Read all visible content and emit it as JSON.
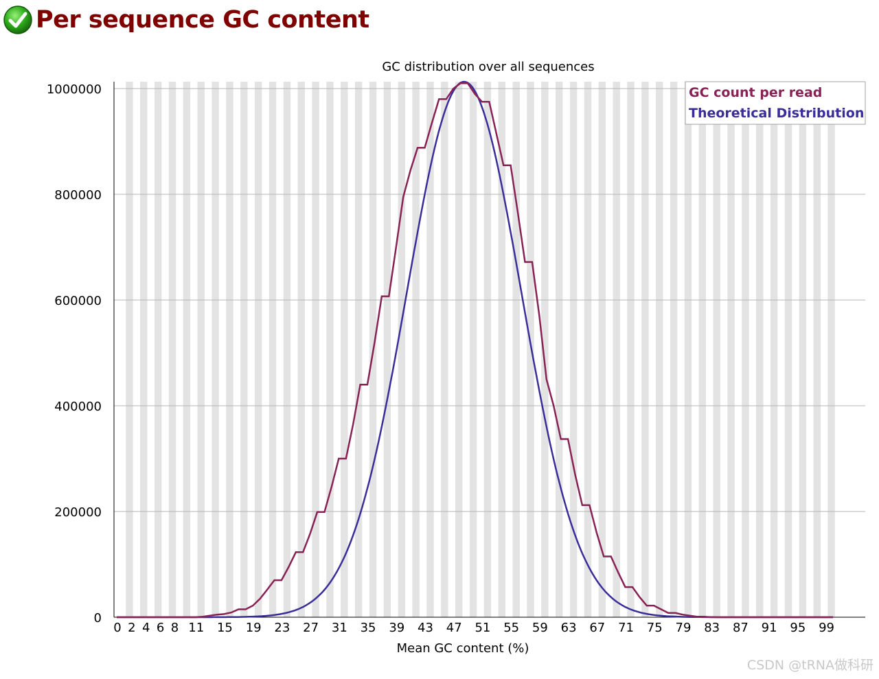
{
  "header": {
    "title": "Per sequence GC content",
    "status_icon": "pass-check-icon",
    "title_color": "#800000"
  },
  "watermark": "CSDN @tRNA做科研",
  "chart_data": {
    "type": "line",
    "title": "GC distribution over all sequences",
    "xlabel": "Mean GC content (%)",
    "ylabel": "",
    "xlim": [
      0,
      100
    ],
    "ylim": [
      0,
      1000000
    ],
    "x_tick_labels": [
      "0",
      "2",
      "4",
      "6",
      "8",
      "11",
      "15",
      "19",
      "23",
      "27",
      "31",
      "35",
      "39",
      "43",
      "47",
      "51",
      "55",
      "59",
      "63",
      "67",
      "71",
      "75",
      "79",
      "83",
      "87",
      "91",
      "95",
      "99"
    ],
    "y_tick_labels": [
      "0",
      "200000",
      "400000",
      "600000",
      "800000",
      "1000000"
    ],
    "y_ticks": [
      0,
      200000,
      400000,
      600000,
      800000,
      1000000
    ],
    "grid": true,
    "legend_position": "top-right",
    "colors": {
      "background_stripe": "#e3e3e3",
      "gridline": "#b4b4b4"
    },
    "series": [
      {
        "name": "GC count per read",
        "color": "#882255",
        "x": [
          0,
          1,
          2,
          3,
          4,
          5,
          6,
          7,
          8,
          9,
          10,
          11,
          12,
          13,
          14,
          15,
          16,
          17,
          18,
          19,
          20,
          21,
          22,
          23,
          24,
          25,
          26,
          27,
          28,
          29,
          30,
          31,
          32,
          33,
          34,
          35,
          36,
          37,
          38,
          39,
          40,
          41,
          42,
          43,
          44,
          45,
          46,
          47,
          48,
          49,
          50,
          51,
          52,
          53,
          54,
          55,
          56,
          57,
          58,
          59,
          60,
          61,
          62,
          63,
          64,
          65,
          66,
          67,
          68,
          69,
          70,
          71,
          72,
          73,
          74,
          75,
          76,
          77,
          78,
          79,
          80,
          81,
          82,
          83,
          84,
          85,
          86,
          87,
          88,
          89,
          90,
          91,
          92,
          93,
          94,
          95,
          96,
          97,
          98,
          99,
          100
        ],
        "y": [
          0,
          0,
          0,
          0,
          0,
          0,
          0,
          0,
          0,
          0,
          0,
          0,
          1000,
          3000,
          5000,
          6000,
          9000,
          15000,
          15000,
          22000,
          35000,
          52000,
          70000,
          70000,
          95000,
          123000,
          123000,
          158000,
          199000,
          199000,
          247000,
          300000,
          300000,
          365000,
          440000,
          440000,
          520000,
          607000,
          607000,
          700000,
          795000,
          845000,
          888000,
          888000,
          935000,
          980000,
          980000,
          1000000,
          1010000,
          1010000,
          990000,
          975000,
          975000,
          915000,
          855000,
          855000,
          765000,
          672000,
          672000,
          570000,
          450000,
          400000,
          337000,
          337000,
          270000,
          212000,
          212000,
          160000,
          115000,
          115000,
          85000,
          57000,
          57000,
          38000,
          22000,
          22000,
          15000,
          8000,
          8000,
          5000,
          3000,
          1000,
          1000,
          0,
          0,
          0,
          0,
          0,
          0,
          0,
          0,
          0,
          0,
          0,
          0,
          0,
          0,
          0,
          0,
          0,
          0
        ]
      },
      {
        "name": "Theoretical Distribution",
        "color": "#3a2d9a",
        "mean": 48.5,
        "sd": 8.0,
        "peak": 1013000
      }
    ]
  }
}
